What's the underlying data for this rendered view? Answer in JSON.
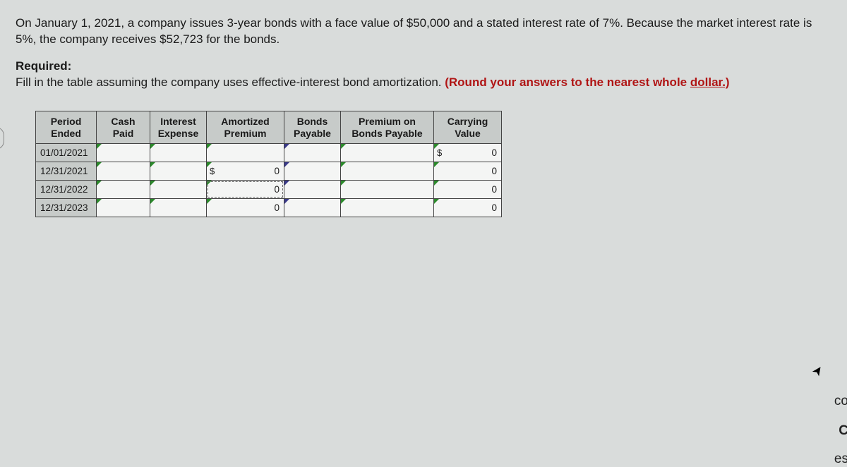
{
  "intro": "On January 1, 2021, a company issues 3-year bonds with a face value of $50,000 and a stated interest rate of 7%. Because the market interest rate is 5%, the company receives $52,723 for the bonds.",
  "required_label": "Required:",
  "required_text_plain": "Fill in the table assuming the company uses effective-interest bond amortization. ",
  "required_text_red": "(Round your answers to the nearest whole dollar.)",
  "table": {
    "columns": [
      {
        "key": "period",
        "label_l1": "Period",
        "label_l2": "Ended",
        "width_class": "w-period"
      },
      {
        "key": "cash",
        "label_l1": "Cash",
        "label_l2": "Paid",
        "width_class": "w-cash"
      },
      {
        "key": "intexp",
        "label_l1": "Interest",
        "label_l2": "Expense",
        "width_class": "w-intexp"
      },
      {
        "key": "amort",
        "label_l1": "Amortized",
        "label_l2": "Premium",
        "width_class": "w-amort"
      },
      {
        "key": "bonds",
        "label_l1": "Bonds",
        "label_l2": "Payable",
        "width_class": "w-bonds"
      },
      {
        "key": "premon",
        "label_l1": "Premium on",
        "label_l2": "Bonds Payable",
        "width_class": "w-premon"
      },
      {
        "key": "carry",
        "label_l1": "Carrying",
        "label_l2": "Value",
        "width_class": "w-carry"
      }
    ],
    "rows": [
      {
        "period": "01/01/2021",
        "cash": "",
        "intexp": "",
        "amort": "",
        "amort_prefix": "",
        "bonds": "",
        "premon": "",
        "carry": "0",
        "carry_prefix": "$",
        "focus": false
      },
      {
        "period": "12/31/2021",
        "cash": "",
        "intexp": "",
        "amort": "0",
        "amort_prefix": "$",
        "bonds": "",
        "premon": "",
        "carry": "0",
        "carry_prefix": "",
        "focus": false
      },
      {
        "period": "12/31/2022",
        "cash": "",
        "intexp": "",
        "amort": "0",
        "amort_prefix": "",
        "bonds": "",
        "premon": "",
        "carry": "0",
        "carry_prefix": "",
        "focus": true
      },
      {
        "period": "12/31/2023",
        "cash": "",
        "intexp": "",
        "amort": "0",
        "amort_prefix": "",
        "bonds": "",
        "premon": "",
        "carry": "0",
        "carry_prefix": "",
        "focus": false
      }
    ]
  },
  "colors": {
    "page_bg": "#d9dcdb",
    "header_bg": "#c7cbc9",
    "cell_bg": "#f4f5f4",
    "border": "#444444",
    "red": "#b01515",
    "tri_green": "#2b8a2b",
    "tri_blue": "#3a3a8a"
  },
  "edge_fragments": [
    "co",
    "C",
    "es"
  ]
}
